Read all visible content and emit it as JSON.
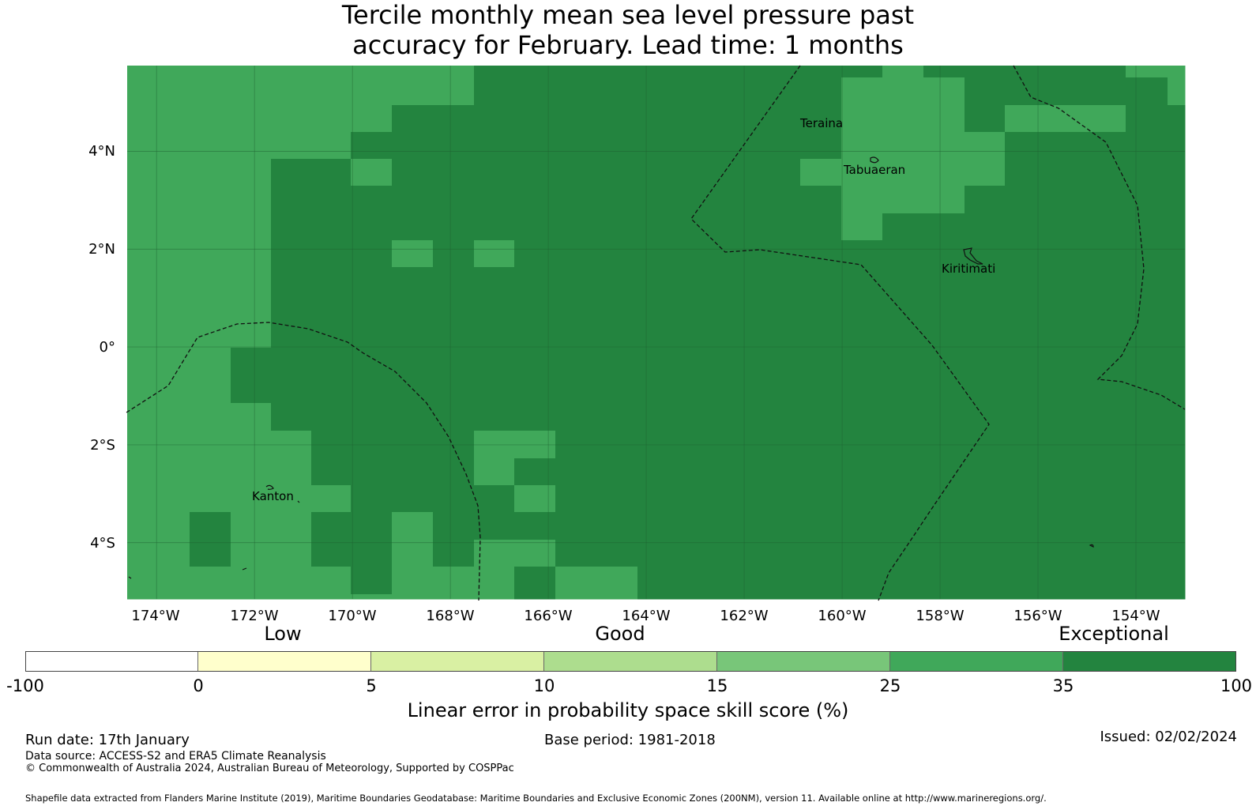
{
  "title": {
    "line1": "Tercile monthly mean sea level pressure past",
    "line2": "accuracy for February. Lead time: 1 months"
  },
  "map": {
    "lon_range": [
      -174.6,
      -153.0
    ],
    "lat_range": [
      -5.15,
      5.75
    ],
    "lat_labels": [
      "4°N",
      "2°N",
      "0°",
      "2°S",
      "4°S"
    ],
    "lon_labels": [
      "174°W",
      "172°W",
      "170°W",
      "168°W",
      "166°W",
      "164°W",
      "162°W",
      "160°W",
      "158°W",
      "156°W",
      "154°W"
    ],
    "places": [
      "Teraina",
      "Tabuaeran",
      "Kiritimati",
      "Kanton"
    ],
    "colors": {
      "band_25_35": "#40a85a",
      "band_35_100": "#23843f"
    }
  },
  "legend": {
    "categories": [
      "Low",
      "Good",
      "Exceptional"
    ],
    "ticks": [
      "-100",
      "0",
      "5",
      "10",
      "15",
      "25",
      "35",
      "100"
    ],
    "colors": [
      "#ffffff",
      "#ffffcc",
      "#d9f0a3",
      "#addd8e",
      "#78c679",
      "#40a85a",
      "#23843f"
    ],
    "label": "Linear error in probability space skill score (%)"
  },
  "footer": {
    "run_date": "Run date: 17th January",
    "base_period": "Base period: 1981-2018",
    "issued": "Issued: 02/02/2024",
    "data_source": "Data source: ACCESS-S2 and ERA5 Climate Reanalysis",
    "copyright": "© Commonwealth of Australia 2024, Australian Bureau of Meteorology, Supported by COSPPac",
    "shapefile": "Shapefile data extracted from Flanders Marine Institute (2019), Maritime Boundaries Geodatabase: Maritime Boundaries and Exclusive Economic Zones (200NM), version 11. Available online at http://www.marineregions.org/."
  }
}
